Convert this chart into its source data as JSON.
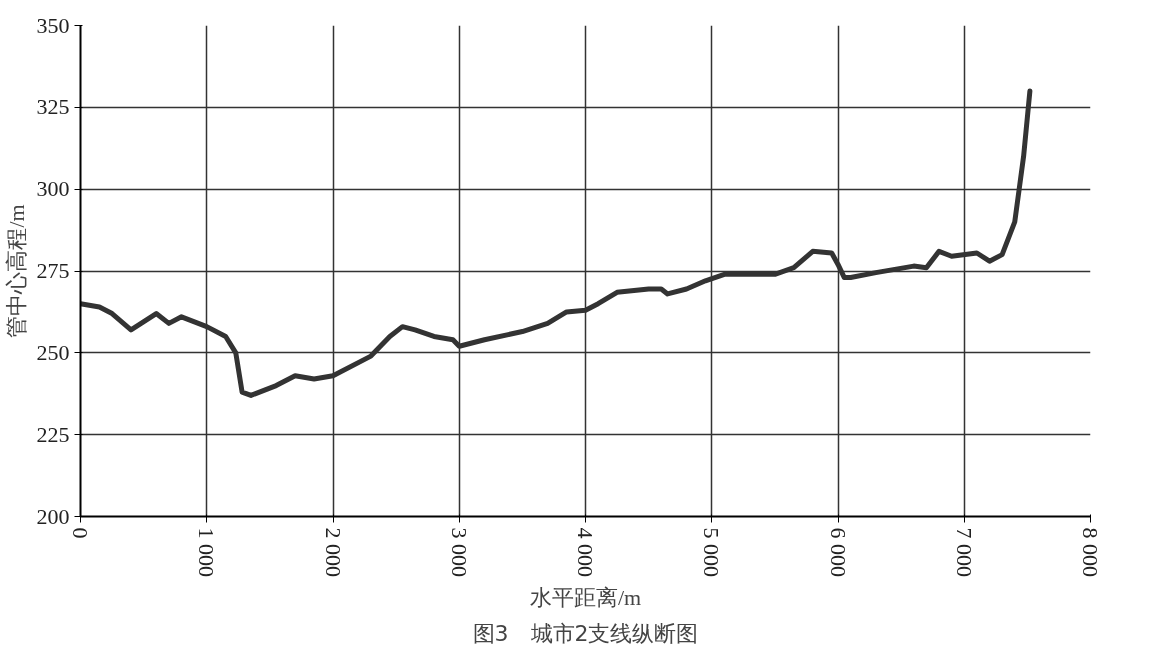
{
  "chart_data": {
    "type": "line",
    "xlabel": "水平距离/m",
    "ylabel": "管中心高程/m",
    "annotations": [
      "图3　城市2支线纵断图"
    ],
    "x": [
      0,
      150,
      250,
      400,
      600,
      700,
      800,
      1000,
      1150,
      1230,
      1280,
      1350,
      1550,
      1700,
      1850,
      2000,
      2300,
      2450,
      2550,
      2650,
      2800,
      2950,
      3000,
      3200,
      3500,
      3700,
      3850,
      4000,
      4100,
      4250,
      4500,
      4600,
      4650,
      4800,
      4950,
      5100,
      5500,
      5650,
      5800,
      5950,
      6000,
      6050,
      6100,
      6300,
      6600,
      6700,
      6800,
      6900,
      7100,
      7200,
      7300,
      7400,
      7470,
      7520
    ],
    "series": [
      {
        "color": "#333333",
        "values": [
          265,
          264,
          262,
          257,
          262,
          259,
          261,
          258,
          255,
          250,
          238,
          237,
          240,
          243,
          242,
          243,
          249,
          255,
          258,
          257,
          255,
          254,
          252,
          254,
          256.5,
          259,
          262.5,
          263,
          265,
          268.5,
          269.5,
          269.5,
          268,
          269.5,
          272,
          274,
          274,
          276,
          281,
          280.5,
          277,
          273,
          273,
          274.5,
          276.5,
          276,
          281,
          279.5,
          280.5,
          278,
          280,
          290,
          310,
          330
        ]
      }
    ],
    "xlim": [
      0,
      8000
    ],
    "xticks": [
      0,
      {
        "value": 1000,
        "label": "1 000"
      },
      {
        "value": 2000,
        "label": "2 000"
      },
      {
        "value": 3000,
        "label": "3 000"
      },
      {
        "value": 4000,
        "label": "4 000"
      },
      {
        "value": 5000,
        "label": "5 000"
      },
      {
        "value": 6000,
        "label": "6 000"
      },
      {
        "value": 7000,
        "label": "7 000"
      },
      {
        "value": 8000,
        "label": "8 000"
      }
    ],
    "ylim": [
      200,
      350
    ],
    "yticks": [
      200,
      225,
      250,
      275,
      300,
      325,
      350
    ],
    "grid": true
  }
}
